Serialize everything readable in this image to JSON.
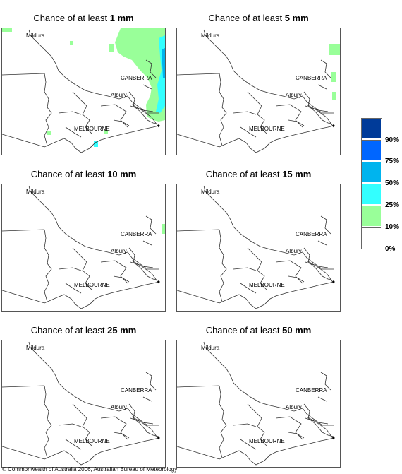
{
  "title_prefix": "Chance of at least ",
  "panels": [
    {
      "amount": "1 mm"
    },
    {
      "amount": "5 mm"
    },
    {
      "amount": "10 mm"
    },
    {
      "amount": "15 mm"
    },
    {
      "amount": "25 mm"
    },
    {
      "amount": "50 mm"
    }
  ],
  "place_labels": {
    "mildura": "Mildura",
    "canberra": "CANBERRA",
    "albury": "Albury",
    "melbourne": "MELBOURNE"
  },
  "legend": {
    "bands": [
      {
        "range": "90-100%",
        "color": "#003b99"
      },
      {
        "range": "75-90%",
        "color": "#0066ff"
      },
      {
        "range": "50-75%",
        "color": "#00b4ee"
      },
      {
        "range": "25-50%",
        "color": "#33ffff"
      },
      {
        "range": "10-25%",
        "color": "#99ff99"
      },
      {
        "range": "0-10%",
        "color": "#ffffff"
      }
    ],
    "labels": [
      "90%",
      "75%",
      "50%",
      "25%",
      "10%",
      "0%"
    ]
  },
  "copyright": "© Commonwealth of Australia 2006, Australian Bureau of Meteorology"
}
